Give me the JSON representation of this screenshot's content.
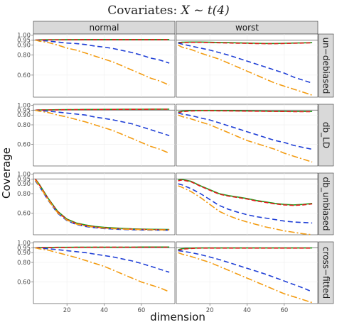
{
  "chart_data": {
    "type": "line",
    "title": "Covariates: X ~ t(4)",
    "title_prefix": "Covariates:",
    "title_math": "X",
    "title_tilde": "~",
    "title_dist": "t(4)",
    "xlabel": "dimension",
    "ylabel": "Coverage",
    "columns": [
      "normal",
      "worst"
    ],
    "rows": [
      "un-debiased",
      "db_LD",
      "db_unbiased",
      "cross-fitted"
    ],
    "row_labels": [
      "un−debiased",
      "db_LD",
      "db_unbiased",
      "cross−fitted"
    ],
    "x_ticks": [
      20,
      40,
      60
    ],
    "x_tick_labels": [
      "20",
      "40",
      "60"
    ],
    "xlim": [
      2,
      78
    ],
    "y_ticks": [
      0.6,
      0.8,
      0.9,
      0.95,
      1.0
    ],
    "y_tick_labels": [
      "0.60",
      "0.80",
      "0.90",
      "0.95",
      "1.00"
    ],
    "ylim": [
      0.38,
      1.01
    ],
    "hline": 0.95,
    "grid": true,
    "background": "#ffffff",
    "strip_color": "#d9d9d9",
    "series_styles": [
      {
        "key": "s1",
        "color": "#1a9e1a",
        "dash": "none"
      },
      {
        "key": "s2",
        "color": "#e31a1c",
        "dash": "6,3"
      },
      {
        "key": "s3",
        "color": "#1f3fd6",
        "dash": "7,4"
      },
      {
        "key": "s4",
        "color": "#f39c12",
        "dash": "9,3,2,3"
      }
    ],
    "x": [
      3,
      5,
      10,
      15,
      20,
      25,
      30,
      35,
      40,
      45,
      50,
      55,
      60,
      65,
      70,
      75
    ],
    "panels": [
      {
        "row": "un-debiased",
        "column": "normal",
        "series": [
          {
            "values": [
              0.95,
              0.952,
              0.953,
              0.953,
              0.954,
              0.954,
              0.955,
              0.955,
              0.955,
              0.955,
              0.955,
              0.955,
              0.955,
              0.955,
              0.955,
              0.955
            ]
          },
          {
            "values": [
              0.95,
              0.951,
              0.952,
              0.952,
              0.953,
              0.953,
              0.954,
              0.954,
              0.954,
              0.954,
              0.954,
              0.954,
              0.954,
              0.954,
              0.954,
              0.954
            ]
          },
          {
            "values": [
              0.95,
              0.945,
              0.94,
              0.93,
              0.92,
              0.915,
              0.905,
              0.89,
              0.88,
              0.865,
              0.845,
              0.825,
              0.8,
              0.77,
              0.75,
              0.72
            ]
          },
          {
            "values": [
              0.95,
              0.94,
              0.925,
              0.9,
              0.87,
              0.85,
              0.82,
              0.79,
              0.76,
              0.73,
              0.69,
              0.65,
              0.61,
              0.57,
              0.54,
              0.5
            ]
          }
        ]
      },
      {
        "row": "un-debiased",
        "column": "worst",
        "series": [
          {
            "values": [
              0.925,
              0.928,
              0.93,
              0.93,
              0.928,
              0.926,
              0.924,
              0.922,
              0.92,
              0.918,
              0.916,
              0.916,
              0.918,
              0.92,
              0.922,
              0.924
            ]
          },
          {
            "values": [
              0.92,
              0.924,
              0.927,
              0.927,
              0.925,
              0.923,
              0.921,
              0.919,
              0.917,
              0.915,
              0.914,
              0.914,
              0.916,
              0.918,
              0.92,
              0.922
            ]
          },
          {
            "values": [
              0.92,
              0.91,
              0.89,
              0.87,
              0.85,
              0.825,
              0.8,
              0.77,
              0.74,
              0.71,
              0.68,
              0.65,
              0.62,
              0.58,
              0.55,
              0.52
            ]
          },
          {
            "values": [
              0.9,
              0.88,
              0.855,
              0.82,
              0.79,
              0.76,
              0.72,
              0.68,
              0.64,
              0.6,
              0.56,
              0.52,
              0.49,
              0.46,
              0.43,
              0.4
            ]
          }
        ]
      },
      {
        "row": "db_LD",
        "column": "normal",
        "series": [
          {
            "values": [
              0.95,
              0.952,
              0.953,
              0.954,
              0.955,
              0.956,
              0.957,
              0.957,
              0.958,
              0.958,
              0.959,
              0.959,
              0.959,
              0.96,
              0.96,
              0.96
            ]
          },
          {
            "values": [
              0.95,
              0.951,
              0.952,
              0.953,
              0.954,
              0.955,
              0.956,
              0.956,
              0.957,
              0.957,
              0.958,
              0.958,
              0.958,
              0.959,
              0.959,
              0.959
            ]
          },
          {
            "values": [
              0.95,
              0.945,
              0.94,
              0.93,
              0.92,
              0.91,
              0.9,
              0.88,
              0.865,
              0.85,
              0.83,
              0.81,
              0.78,
              0.75,
              0.72,
              0.69
            ]
          },
          {
            "values": [
              0.95,
              0.94,
              0.925,
              0.9,
              0.88,
              0.855,
              0.83,
              0.8,
              0.77,
              0.74,
              0.7,
              0.66,
              0.62,
              0.58,
              0.55,
              0.51
            ]
          }
        ]
      },
      {
        "row": "db_LD",
        "column": "worst",
        "series": [
          {
            "values": [
              0.93,
              0.94,
              0.945,
              0.946,
              0.946,
              0.945,
              0.944,
              0.943,
              0.942,
              0.941,
              0.94,
              0.939,
              0.938,
              0.937,
              0.936,
              0.936
            ]
          },
          {
            "values": [
              0.92,
              0.935,
              0.942,
              0.944,
              0.944,
              0.943,
              0.942,
              0.941,
              0.94,
              0.939,
              0.938,
              0.937,
              0.936,
              0.935,
              0.934,
              0.934
            ]
          },
          {
            "values": [
              0.92,
              0.91,
              0.895,
              0.87,
              0.85,
              0.82,
              0.79,
              0.76,
              0.73,
              0.7,
              0.67,
              0.64,
              0.62,
              0.59,
              0.57,
              0.55
            ]
          },
          {
            "values": [
              0.9,
              0.885,
              0.86,
              0.83,
              0.8,
              0.76,
              0.72,
              0.68,
              0.64,
              0.61,
              0.58,
              0.55,
              0.51,
              0.48,
              0.45,
              0.42
            ]
          }
        ]
      },
      {
        "row": "db_unbiased",
        "column": "normal",
        "series": [
          {
            "values": [
              0.95,
              0.9,
              0.75,
              0.62,
              0.54,
              0.5,
              0.48,
              0.465,
              0.455,
              0.45,
              0.445,
              0.44,
              0.438,
              0.436,
              0.435,
              0.434
            ]
          },
          {
            "values": [
              0.95,
              0.895,
              0.745,
              0.615,
              0.535,
              0.495,
              0.475,
              0.46,
              0.45,
              0.445,
              0.44,
              0.437,
              0.435,
              0.433,
              0.432,
              0.431
            ]
          },
          {
            "values": [
              0.93,
              0.88,
              0.73,
              0.6,
              0.525,
              0.485,
              0.465,
              0.452,
              0.443,
              0.438,
              0.434,
              0.431,
              0.429,
              0.428,
              0.427,
              0.426
            ]
          },
          {
            "values": [
              0.94,
              0.885,
              0.735,
              0.605,
              0.53,
              0.49,
              0.47,
              0.456,
              0.447,
              0.442,
              0.438,
              0.435,
              0.433,
              0.431,
              0.43,
              0.429
            ]
          }
        ]
      },
      {
        "row": "db_unbiased",
        "column": "worst",
        "series": [
          {
            "values": [
              0.94,
              0.945,
              0.925,
              0.88,
              0.84,
              0.8,
              0.78,
              0.765,
              0.75,
              0.73,
              0.715,
              0.7,
              0.69,
              0.685,
              0.69,
              0.7
            ]
          },
          {
            "values": [
              0.93,
              0.94,
              0.92,
              0.875,
              0.835,
              0.795,
              0.775,
              0.76,
              0.745,
              0.725,
              0.71,
              0.695,
              0.685,
              0.68,
              0.685,
              0.695
            ]
          },
          {
            "values": [
              0.9,
              0.89,
              0.85,
              0.8,
              0.74,
              0.68,
              0.64,
              0.61,
              0.585,
              0.565,
              0.55,
              0.535,
              0.52,
              0.51,
              0.505,
              0.5
            ]
          },
          {
            "values": [
              0.88,
              0.865,
              0.82,
              0.76,
              0.69,
              0.62,
              0.575,
              0.54,
              0.51,
              0.485,
              0.46,
              0.44,
              0.42,
              0.405,
              0.39,
              0.38
            ]
          }
        ]
      },
      {
        "row": "cross-fitted",
        "column": "normal",
        "series": [
          {
            "values": [
              0.95,
              0.952,
              0.953,
              0.954,
              0.954,
              0.955,
              0.955,
              0.956,
              0.956,
              0.956,
              0.956,
              0.956,
              0.957,
              0.957,
              0.957,
              0.957
            ]
          },
          {
            "values": [
              0.95,
              0.951,
              0.952,
              0.953,
              0.953,
              0.954,
              0.954,
              0.955,
              0.955,
              0.955,
              0.955,
              0.955,
              0.956,
              0.956,
              0.956,
              0.956
            ]
          },
          {
            "values": [
              0.95,
              0.945,
              0.94,
              0.93,
              0.92,
              0.91,
              0.9,
              0.885,
              0.87,
              0.855,
              0.835,
              0.815,
              0.79,
              0.76,
              0.73,
              0.7
            ]
          },
          {
            "values": [
              0.95,
              0.94,
              0.925,
              0.9,
              0.875,
              0.85,
              0.82,
              0.79,
              0.76,
              0.72,
              0.68,
              0.64,
              0.6,
              0.57,
              0.54,
              0.5
            ]
          }
        ]
      },
      {
        "row": "cross-fitted",
        "column": "worst",
        "series": [
          {
            "values": [
              0.93,
              0.94,
              0.946,
              0.948,
              0.948,
              0.948,
              0.948,
              0.948,
              0.948,
              0.948,
              0.948,
              0.948,
              0.948,
              0.948,
              0.948,
              0.948
            ]
          },
          {
            "values": [
              0.92,
              0.935,
              0.943,
              0.946,
              0.946,
              0.946,
              0.946,
              0.946,
              0.946,
              0.946,
              0.946,
              0.946,
              0.946,
              0.946,
              0.946,
              0.946
            ]
          },
          {
            "values": [
              0.92,
              0.915,
              0.9,
              0.88,
              0.855,
              0.83,
              0.8,
              0.77,
              0.74,
              0.71,
              0.68,
              0.645,
              0.61,
              0.575,
              0.54,
              0.5
            ]
          },
          {
            "values": [
              0.9,
              0.885,
              0.86,
              0.83,
              0.8,
              0.76,
              0.72,
              0.68,
              0.64,
              0.6,
              0.56,
              0.52,
              0.48,
              0.45,
              0.42,
              0.39
            ]
          }
        ]
      }
    ]
  }
}
